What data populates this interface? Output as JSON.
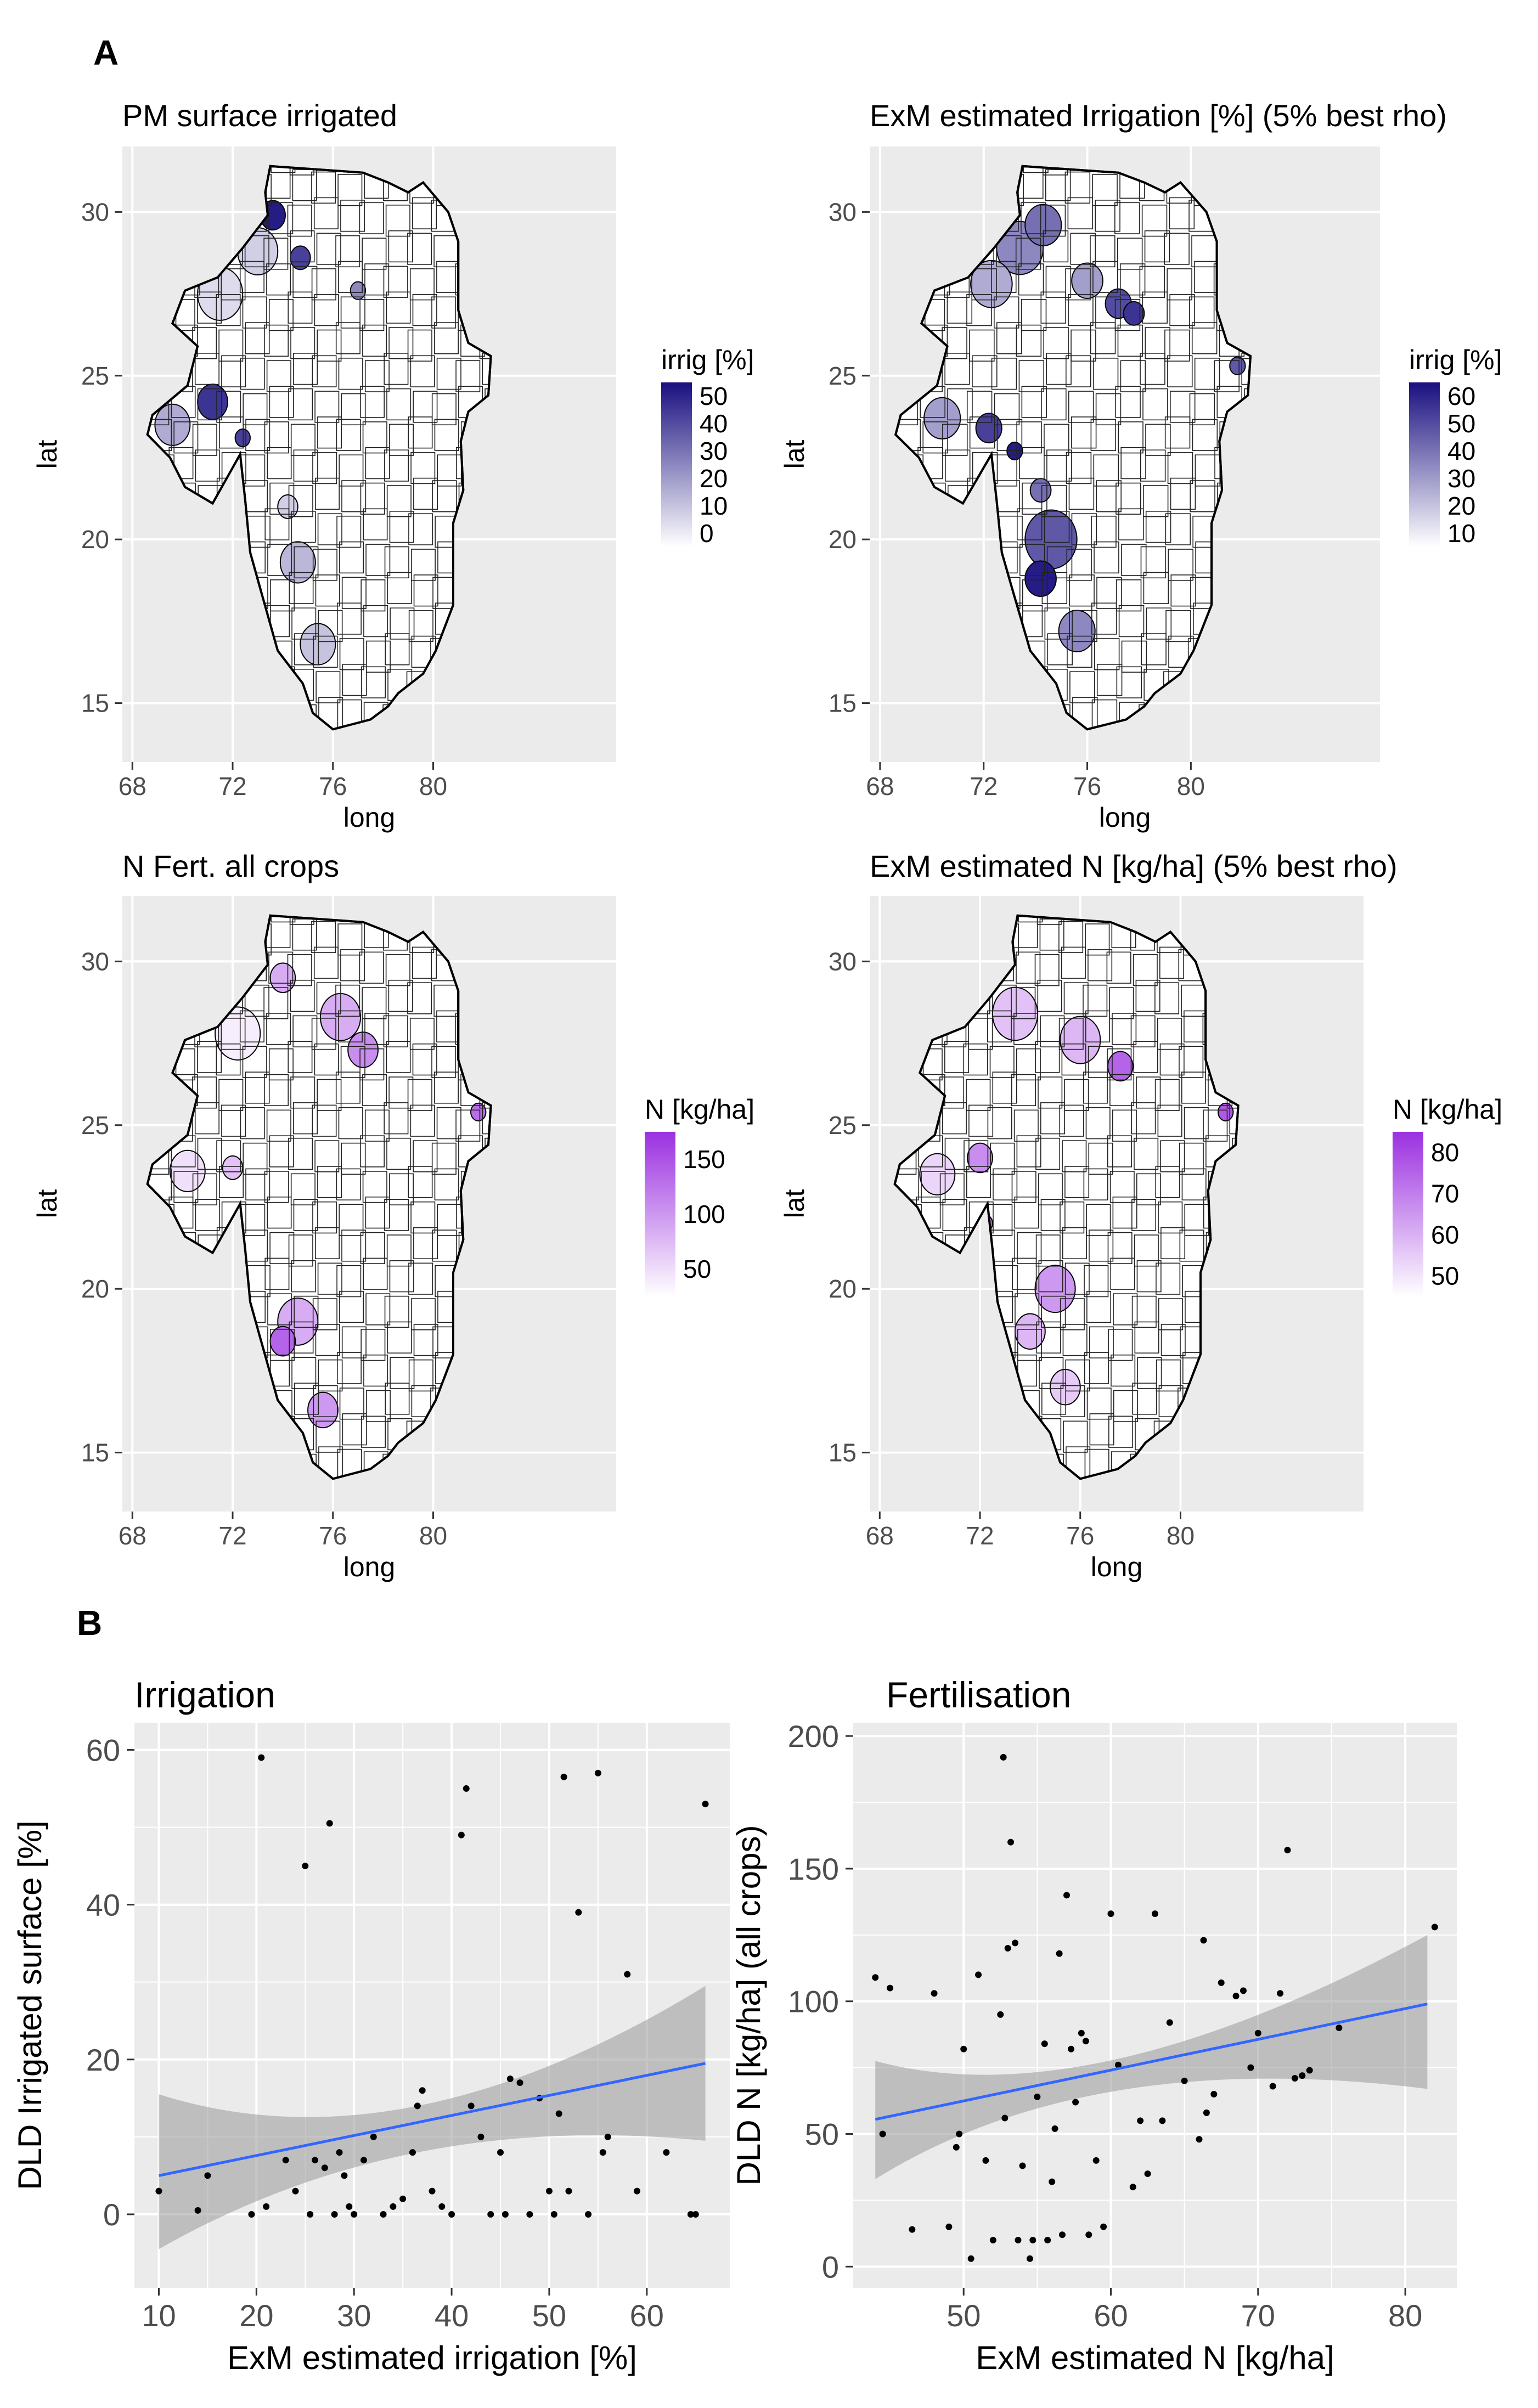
{
  "figure": {
    "panel_a_label": "A",
    "panel_b_label": "B"
  },
  "maps": [
    {
      "id": "pm-irrig",
      "title": "PM surface irrigated",
      "xlabel": "long",
      "ylabel": "lat",
      "x_ticks": [
        68,
        72,
        76,
        80
      ],
      "y_ticks": [
        15,
        20,
        25,
        30
      ],
      "legend_title": "irrig [%]",
      "legend_ticks": [
        0,
        10,
        20,
        30,
        40,
        50
      ],
      "colors": [
        "#ffffff",
        "#1a1080"
      ]
    },
    {
      "id": "exm-irrig",
      "title": "ExM  estimated Irrigation [%] (5% best rho)",
      "xlabel": "long",
      "ylabel": "lat",
      "x_ticks": [
        68,
        72,
        76,
        80
      ],
      "y_ticks": [
        15,
        20,
        25,
        30
      ],
      "legend_title": "irrig [%]",
      "legend_ticks": [
        10,
        20,
        30,
        40,
        50,
        60
      ],
      "colors": [
        "#ffffff",
        "#1a1080"
      ]
    },
    {
      "id": "n-fert",
      "title": "N Fert. all crops",
      "xlabel": "long",
      "ylabel": "lat",
      "x_ticks": [
        68,
        72,
        76,
        80
      ],
      "y_ticks": [
        15,
        20,
        25,
        30
      ],
      "legend_title": "N [kg/ha]",
      "legend_ticks": [
        50,
        100,
        150
      ],
      "colors": [
        "#ffffff",
        "#9b30e0"
      ]
    },
    {
      "id": "exm-n",
      "title": "ExM  estimated N [kg/ha] (5% best rho)",
      "xlabel": "long",
      "ylabel": "lat",
      "x_ticks": [
        68,
        72,
        76,
        80
      ],
      "y_ticks": [
        15,
        20,
        25,
        30
      ],
      "legend_title": "N [kg/ha]",
      "legend_ticks": [
        50,
        60,
        70,
        80
      ],
      "colors": [
        "#ffffff",
        "#9b30e0"
      ]
    }
  ],
  "chart_data": [
    {
      "type": "scatter",
      "title": "Irrigation",
      "xlabel": "ExM estimated irrigation [%]",
      "ylabel": "DLD Irrigated surface [%]",
      "xlim": [
        7.5,
        68.5
      ],
      "ylim": [
        -9.5,
        63.5
      ],
      "x_ticks": [
        10,
        20,
        30,
        40,
        50,
        60
      ],
      "y_ticks": [
        0,
        20,
        40,
        60
      ],
      "points": [
        [
          10,
          3
        ],
        [
          14,
          0.5
        ],
        [
          15,
          5
        ],
        [
          19.5,
          0
        ],
        [
          20.5,
          59
        ],
        [
          21,
          1
        ],
        [
          23,
          7
        ],
        [
          24,
          3
        ],
        [
          25,
          45
        ],
        [
          25.5,
          0
        ],
        [
          26,
          7
        ],
        [
          27,
          6
        ],
        [
          27.5,
          50.5
        ],
        [
          28,
          0
        ],
        [
          28.5,
          8
        ],
        [
          29,
          5
        ],
        [
          29.5,
          1
        ],
        [
          30,
          0
        ],
        [
          31,
          7
        ],
        [
          32,
          10
        ],
        [
          33,
          0
        ],
        [
          34,
          1
        ],
        [
          35,
          2
        ],
        [
          36,
          8
        ],
        [
          36.5,
          14
        ],
        [
          37,
          16
        ],
        [
          38,
          3
        ],
        [
          39,
          1
        ],
        [
          40,
          0
        ],
        [
          41,
          49
        ],
        [
          41.5,
          55
        ],
        [
          42,
          14
        ],
        [
          43,
          10
        ],
        [
          44,
          0
        ],
        [
          45,
          8
        ],
        [
          45.5,
          0
        ],
        [
          46,
          17.5
        ],
        [
          47,
          17
        ],
        [
          48,
          0
        ],
        [
          49,
          15
        ],
        [
          50,
          3
        ],
        [
          50.5,
          0
        ],
        [
          51,
          13
        ],
        [
          51.5,
          56.5
        ],
        [
          52,
          3
        ],
        [
          53,
          39
        ],
        [
          54,
          0
        ],
        [
          55,
          57
        ],
        [
          55.5,
          8
        ],
        [
          56,
          10
        ],
        [
          58,
          31
        ],
        [
          59,
          3
        ],
        [
          62,
          8
        ],
        [
          64.5,
          0
        ],
        [
          65,
          0
        ],
        [
          66,
          53
        ]
      ],
      "fit": {
        "x": [
          10,
          66
        ],
        "y": [
          5,
          19.5
        ]
      },
      "ci_lower": [
        -4.5,
        9.5
      ],
      "ci_upper": [
        15.5,
        29.5
      ],
      "ci_mid": {
        "x": 35,
        "lower": 8,
        "upper": 14
      }
    },
    {
      "type": "scatter",
      "title": "Fertilisation",
      "xlabel": "ExM estimated N [kg/ha]",
      "ylabel": "DLD N [kg/ha] (all crops)",
      "xlim": [
        42.5,
        83.5
      ],
      "ylim": [
        -8,
        205
      ],
      "x_ticks": [
        50,
        60,
        70,
        80
      ],
      "y_ticks": [
        0,
        50,
        100,
        150,
        200
      ],
      "points": [
        [
          44,
          109
        ],
        [
          44.5,
          50
        ],
        [
          45,
          105
        ],
        [
          46.5,
          14
        ],
        [
          48,
          103
        ],
        [
          49,
          15
        ],
        [
          49.5,
          45
        ],
        [
          49.7,
          50
        ],
        [
          50,
          82
        ],
        [
          50.5,
          3
        ],
        [
          51,
          110
        ],
        [
          51.5,
          40
        ],
        [
          52,
          10
        ],
        [
          52.5,
          95
        ],
        [
          52.7,
          192
        ],
        [
          52.8,
          56
        ],
        [
          53,
          120
        ],
        [
          53.2,
          160
        ],
        [
          53.5,
          122
        ],
        [
          53.7,
          10
        ],
        [
          54,
          38
        ],
        [
          54.5,
          3
        ],
        [
          54.7,
          10
        ],
        [
          55,
          64
        ],
        [
          55.5,
          84
        ],
        [
          55.7,
          10
        ],
        [
          56,
          32
        ],
        [
          56.2,
          52
        ],
        [
          56.5,
          118
        ],
        [
          56.7,
          12
        ],
        [
          57,
          140
        ],
        [
          57.3,
          82
        ],
        [
          57.6,
          62
        ],
        [
          58,
          88
        ],
        [
          58.3,
          85
        ],
        [
          58.5,
          12
        ],
        [
          59,
          40
        ],
        [
          59.5,
          15
        ],
        [
          60,
          133
        ],
        [
          60.5,
          76
        ],
        [
          61.5,
          30
        ],
        [
          62,
          55
        ],
        [
          62.5,
          35
        ],
        [
          63,
          133
        ],
        [
          63.5,
          55
        ],
        [
          64,
          92
        ],
        [
          65,
          70
        ],
        [
          66,
          48
        ],
        [
          66.3,
          123
        ],
        [
          66.5,
          58
        ],
        [
          67,
          65
        ],
        [
          67.5,
          107
        ],
        [
          68.5,
          102
        ],
        [
          69,
          104
        ],
        [
          69.5,
          75
        ],
        [
          70,
          88
        ],
        [
          71,
          68
        ],
        [
          71.5,
          103
        ],
        [
          72,
          157
        ],
        [
          72.5,
          71
        ],
        [
          73,
          72
        ],
        [
          73.5,
          74
        ],
        [
          75.5,
          90
        ],
        [
          82,
          128
        ]
      ],
      "fit": {
        "x": [
          44,
          81.5
        ],
        "y": [
          55.5,
          99
        ]
      },
      "ci_lower": [
        33,
        67
      ],
      "ci_upper": [
        77.5,
        125
      ],
      "ci_mid": {
        "x": 58.5,
        "lower": 66.5,
        "upper": 78.5
      }
    }
  ]
}
